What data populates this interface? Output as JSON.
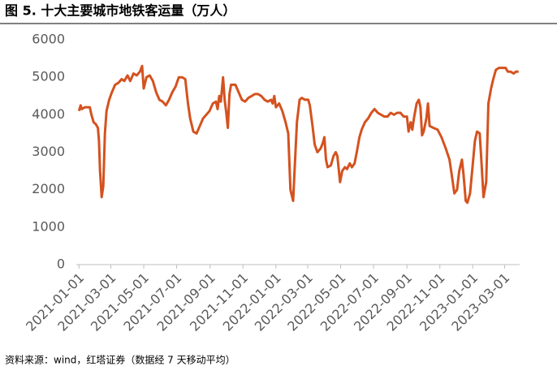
{
  "chart_data": {
    "type": "line",
    "title": "图 5. 十大主要城市地铁客运量（万人）",
    "source": "资料来源：wind，红塔证券（数据经 7 天移动平均）",
    "color": "#d4521f",
    "x": [
      "2021-01-01",
      "2021-01-04",
      "2021-01-06",
      "2021-01-12",
      "2021-01-21",
      "2021-01-24",
      "2021-01-28",
      "2021-02-01",
      "2021-02-05",
      "2021-02-07",
      "2021-02-09",
      "2021-02-12",
      "2021-02-15",
      "2021-02-18",
      "2021-02-21",
      "2021-02-26",
      "2021-03-03",
      "2021-03-09",
      "2021-03-15",
      "2021-03-21",
      "2021-03-26",
      "2021-04-01",
      "2021-04-06",
      "2021-04-12",
      "2021-04-18",
      "2021-04-24",
      "2021-04-28",
      "2021-05-01",
      "2021-05-06",
      "2021-05-12",
      "2021-05-18",
      "2021-05-24",
      "2021-05-30",
      "2021-06-05",
      "2021-06-11",
      "2021-06-17",
      "2021-06-23",
      "2021-06-29",
      "2021-07-05",
      "2021-07-11",
      "2021-07-17",
      "2021-07-22",
      "2021-07-26",
      "2021-08-01",
      "2021-08-07",
      "2021-08-13",
      "2021-08-19",
      "2021-08-25",
      "2021-08-31",
      "2021-09-06",
      "2021-09-12",
      "2021-09-15",
      "2021-09-18",
      "2021-09-21",
      "2021-09-25",
      "2021-09-28",
      "2021-10-01",
      "2021-10-04",
      "2021-10-07",
      "2021-10-10",
      "2021-10-18",
      "2021-10-24",
      "2021-10-30",
      "2021-11-05",
      "2021-11-11",
      "2021-11-17",
      "2021-11-23",
      "2021-11-29",
      "2021-12-05",
      "2021-12-11",
      "2021-12-17",
      "2021-12-23",
      "2021-12-26",
      "2021-12-29",
      "2022-01-01",
      "2022-01-07",
      "2022-01-13",
      "2022-01-19",
      "2022-01-24",
      "2022-01-28",
      "2022-02-02",
      "2022-02-05",
      "2022-02-09",
      "2022-02-14",
      "2022-02-18",
      "2022-02-24",
      "2022-03-02",
      "2022-03-05",
      "2022-03-10",
      "2022-03-14",
      "2022-03-19",
      "2022-03-25",
      "2022-03-29",
      "2022-04-01",
      "2022-04-04",
      "2022-04-07",
      "2022-04-13",
      "2022-04-18",
      "2022-04-22",
      "2022-04-25",
      "2022-04-30",
      "2022-05-04",
      "2022-05-09",
      "2022-05-13",
      "2022-05-18",
      "2022-05-22",
      "2022-05-27",
      "2022-05-31",
      "2022-06-05",
      "2022-06-09",
      "2022-06-15",
      "2022-06-21",
      "2022-06-27",
      "2022-07-03",
      "2022-07-09",
      "2022-07-15",
      "2022-07-21",
      "2022-07-27",
      "2022-08-02",
      "2022-08-08",
      "2022-08-14",
      "2022-08-20",
      "2022-08-26",
      "2022-09-01",
      "2022-09-04",
      "2022-09-08",
      "2022-09-11",
      "2022-09-14",
      "2022-09-19",
      "2022-09-23",
      "2022-09-26",
      "2022-09-29",
      "2022-10-02",
      "2022-10-07",
      "2022-10-10",
      "2022-10-13",
      "2022-10-20",
      "2022-10-28",
      "2022-11-04",
      "2022-11-12",
      "2022-11-19",
      "2022-11-24",
      "2022-11-28",
      "2022-12-03",
      "2022-12-07",
      "2022-12-12",
      "2022-12-15",
      "2022-12-19",
      "2022-12-22",
      "2022-12-27",
      "2022-12-31",
      "2023-01-05",
      "2023-01-09",
      "2023-01-14",
      "2023-01-17",
      "2023-01-21",
      "2023-01-26",
      "2023-01-30",
      "2023-02-04",
      "2023-02-08",
      "2023-02-13",
      "2023-02-19",
      "2023-02-25",
      "2023-03-03",
      "2023-03-07",
      "2023-03-12",
      "2023-03-18",
      "2023-03-22",
      "2023-03-27"
    ],
    "values": [
      4100,
      4250,
      4150,
      4200,
      4200,
      4000,
      3800,
      3750,
      3650,
      3300,
      2500,
      1800,
      2100,
      3500,
      4100,
      4400,
      4600,
      4800,
      4850,
      4950,
      4900,
      5050,
      4900,
      5100,
      5050,
      5150,
      5300,
      4700,
      5000,
      5050,
      4900,
      4600,
      4400,
      4350,
      4250,
      4400,
      4600,
      4750,
      5000,
      5000,
      4950,
      4300,
      3900,
      3550,
      3500,
      3700,
      3900,
      4000,
      4100,
      4300,
      4350,
      4150,
      4500,
      4350,
      5000,
      4400,
      4050,
      3650,
      4550,
      4800,
      4800,
      4600,
      4400,
      4350,
      4450,
      4500,
      4550,
      4550,
      4500,
      4400,
      4350,
      4400,
      4300,
      4500,
      4200,
      4300,
      4100,
      3800,
      3500,
      2000,
      1700,
      2600,
      3800,
      4400,
      4450,
      4400,
      4400,
      4250,
      3700,
      3200,
      3000,
      3100,
      3250,
      3400,
      2800,
      2600,
      2650,
      2900,
      3000,
      2900,
      2200,
      2500,
      2600,
      2550,
      2700,
      2600,
      2700,
      3000,
      3400,
      3600,
      3800,
      3900,
      4050,
      4150,
      4050,
      4000,
      3950,
      3950,
      4050,
      4000,
      4050,
      4050,
      3950,
      3950,
      3550,
      3800,
      3600,
      3900,
      4300,
      4400,
      4200,
      3450,
      3550,
      3900,
      4300,
      3700,
      3650,
      3600,
      3400,
      3100,
      2800,
      2300,
      1900,
      2000,
      2500,
      2800,
      2400,
      1700,
      1650,
      1900,
      2500,
      3300,
      3550,
      3500,
      2800,
      1800,
      2200,
      4300,
      4700,
      4950,
      5200,
      5250,
      5250,
      5250,
      5150,
      5150,
      5100,
      5150,
      5150
    ],
    "xlim": [
      "2020-12-27",
      "2023-03-29"
    ],
    "xticks": [
      "2021-01-01",
      "2021-03-01",
      "2021-05-01",
      "2021-07-01",
      "2021-09-01",
      "2021-11-01",
      "2022-01-01",
      "2022-03-01",
      "2022-05-01",
      "2022-07-01",
      "2022-09-01",
      "2022-11-01",
      "2023-01-01",
      "2023-03-01"
    ],
    "ylim": [
      0,
      6000
    ],
    "yticks": [
      0,
      1000,
      2000,
      3000,
      4000,
      5000,
      6000
    ],
    "grid": false
  }
}
